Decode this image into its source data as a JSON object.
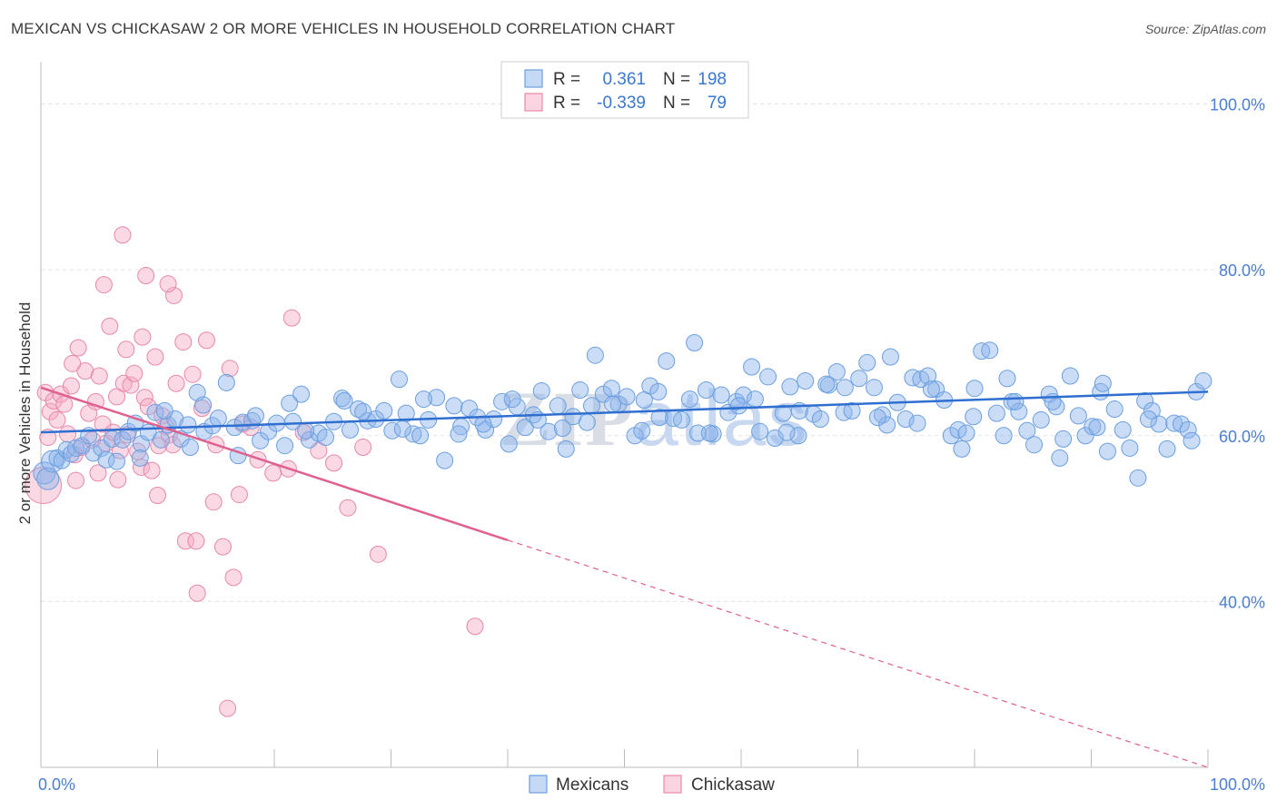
{
  "title": "MEXICAN VS CHICKASAW 2 OR MORE VEHICLES IN HOUSEHOLD CORRELATION CHART",
  "source": "Source: ZipAtlas.com",
  "watermark": "ZIPatlas",
  "colors": {
    "blue": "#6b9fe0",
    "blue_fill": "rgba(140,180,235,0.45)",
    "blue_line": "#2f6fd0",
    "pink": "#e888a8",
    "pink_fill": "rgba(245,170,195,0.45)",
    "pink_line": "#e06090",
    "grid": "#e2e2e2",
    "axis_text": "#4a7fd0"
  },
  "legend": {
    "rows": [
      {
        "r_label": "R =",
        "r_value": "0.361",
        "n_label": "N =",
        "n_value": "198",
        "series": "Mexicans"
      },
      {
        "r_label": "R =",
        "r_value": "-0.339",
        "n_label": "N =",
        "n_value": "79",
        "series": "Chickasaw"
      }
    ]
  },
  "bottom_legend": [
    "Mexicans",
    "Chickasaw"
  ],
  "chart_data": {
    "type": "scatter",
    "title": "MEXICAN VS CHICKASAW 2 OR MORE VEHICLES IN HOUSEHOLD CORRELATION CHART",
    "xlabel": "",
    "ylabel": "2 or more Vehicles in Household",
    "xlim": [
      0,
      100
    ],
    "ylim": [
      20,
      104
    ],
    "x_tick_labels": [
      "0.0%",
      "100.0%"
    ],
    "y_ticks": [
      40,
      60,
      80,
      100
    ],
    "y_tick_labels": [
      "40.0%",
      "60.0%",
      "80.0%",
      "100.0%"
    ],
    "grid": true,
    "legend_position": "top-center",
    "series": [
      {
        "name": "Mexicans",
        "r": 0.361,
        "n": 198,
        "trend": {
          "x": [
            0,
            100
          ],
          "y": [
            60.4,
            65.3
          ]
        },
        "points": [
          [
            0.3,
            55.5
          ],
          [
            0.6,
            54.8
          ],
          [
            1,
            56.9
          ],
          [
            1.4,
            57.3
          ],
          [
            1.8,
            57.0
          ],
          [
            2.2,
            58.3
          ],
          [
            2.6,
            57.8
          ],
          [
            3,
            58.5
          ],
          [
            3.5,
            58.8
          ],
          [
            4.1,
            60.0
          ],
          [
            4.5,
            57.9
          ],
          [
            5.2,
            58.5
          ],
          [
            5.6,
            57.1
          ],
          [
            6.1,
            59.6
          ],
          [
            6.5,
            56.9
          ],
          [
            7.0,
            59.5
          ],
          [
            7.5,
            60.5
          ],
          [
            8.1,
            61.5
          ],
          [
            8.6,
            59.0
          ],
          [
            9.2,
            60.4
          ],
          [
            9.8,
            62.8
          ],
          [
            10.3,
            59.5
          ],
          [
            10.9,
            61.3
          ],
          [
            11.5,
            62.0
          ],
          [
            12.0,
            59.6
          ],
          [
            12.6,
            61.3
          ],
          [
            13.4,
            65.2
          ],
          [
            14.0,
            60.5
          ],
          [
            14.7,
            61.2
          ],
          [
            15.2,
            62.1
          ],
          [
            15.9,
            66.4
          ],
          [
            16.6,
            61.0
          ],
          [
            17.3,
            61.6
          ],
          [
            18.1,
            61.8
          ],
          [
            18.8,
            59.4
          ],
          [
            19.5,
            60.5
          ],
          [
            20.2,
            61.5
          ],
          [
            20.9,
            58.8
          ],
          [
            21.6,
            61.7
          ],
          [
            22.3,
            65.0
          ],
          [
            23.0,
            59.5
          ],
          [
            23.8,
            60.3
          ],
          [
            24.4,
            59.8
          ],
          [
            25.1,
            61.7
          ],
          [
            25.8,
            64.5
          ],
          [
            26.5,
            60.7
          ],
          [
            27.2,
            63.2
          ],
          [
            28.0,
            61.8
          ],
          [
            28.7,
            62.0
          ],
          [
            29.4,
            63.0
          ],
          [
            30.1,
            60.6
          ],
          [
            30.7,
            66.8
          ],
          [
            31.3,
            62.7
          ],
          [
            31.9,
            60.2
          ],
          [
            32.5,
            60.0
          ],
          [
            33.2,
            61.9
          ],
          [
            33.9,
            64.6
          ],
          [
            34.6,
            57.0
          ],
          [
            35.4,
            63.6
          ],
          [
            36.0,
            61.1
          ],
          [
            36.7,
            63.3
          ],
          [
            37.4,
            62.2
          ],
          [
            38.1,
            60.7
          ],
          [
            38.8,
            62.0
          ],
          [
            39.5,
            64.1
          ],
          [
            40.1,
            59.0
          ],
          [
            40.8,
            63.5
          ],
          [
            41.5,
            61.0
          ],
          [
            42.2,
            62.5
          ],
          [
            42.9,
            65.4
          ],
          [
            43.5,
            60.5
          ],
          [
            44.3,
            63.6
          ],
          [
            45.0,
            58.4
          ],
          [
            45.6,
            62.3
          ],
          [
            46.2,
            65.5
          ],
          [
            46.8,
            61.6
          ],
          [
            47.5,
            69.7
          ],
          [
            48.2,
            65.0
          ],
          [
            48.9,
            65.7
          ],
          [
            49.5,
            63.8
          ],
          [
            50.2,
            64.7
          ],
          [
            50.9,
            60.0
          ],
          [
            51.5,
            60.6
          ],
          [
            52.2,
            66.0
          ],
          [
            52.9,
            65.3
          ],
          [
            53.6,
            69.0
          ],
          [
            54.2,
            62.1
          ],
          [
            54.9,
            61.9
          ],
          [
            55.6,
            64.4
          ],
          [
            56.3,
            60.3
          ],
          [
            57.0,
            65.5
          ],
          [
            57.6,
            60.2
          ],
          [
            58.3,
            64.9
          ],
          [
            58.9,
            62.8
          ],
          [
            59.6,
            64.1
          ],
          [
            60.2,
            64.9
          ],
          [
            60.9,
            68.3
          ],
          [
            61.6,
            60.5
          ],
          [
            62.3,
            67.1
          ],
          [
            62.9,
            59.7
          ],
          [
            63.6,
            62.7
          ],
          [
            64.2,
            65.9
          ],
          [
            64.9,
            60.0
          ],
          [
            65.5,
            66.6
          ],
          [
            66.2,
            62.6
          ],
          [
            66.8,
            62.0
          ],
          [
            67.5,
            66.1
          ],
          [
            68.2,
            67.7
          ],
          [
            68.8,
            62.8
          ],
          [
            69.5,
            63.0
          ],
          [
            70.1,
            66.9
          ],
          [
            70.8,
            68.8
          ],
          [
            71.4,
            65.8
          ],
          [
            72.1,
            62.5
          ],
          [
            72.8,
            69.5
          ],
          [
            73.4,
            64.0
          ],
          [
            74.1,
            62.0
          ],
          [
            74.7,
            67.0
          ],
          [
            75.4,
            66.8
          ],
          [
            76.0,
            67.2
          ],
          [
            76.7,
            65.6
          ],
          [
            77.4,
            64.3
          ],
          [
            78.0,
            60.0
          ],
          [
            78.6,
            60.7
          ],
          [
            79.3,
            60.3
          ],
          [
            79.9,
            62.3
          ],
          [
            80.6,
            70.2
          ],
          [
            81.3,
            70.3
          ],
          [
            81.9,
            62.7
          ],
          [
            82.5,
            60.0
          ],
          [
            83.2,
            64.1
          ],
          [
            83.8,
            62.9
          ],
          [
            84.5,
            60.6
          ],
          [
            85.1,
            58.9
          ],
          [
            85.7,
            61.9
          ],
          [
            86.4,
            65.0
          ],
          [
            87.0,
            63.5
          ],
          [
            87.6,
            59.6
          ],
          [
            88.2,
            67.2
          ],
          [
            88.9,
            62.4
          ],
          [
            89.5,
            60.0
          ],
          [
            90.1,
            61.1
          ],
          [
            90.8,
            65.3
          ],
          [
            91.4,
            58.1
          ],
          [
            92.0,
            63.2
          ],
          [
            92.7,
            60.7
          ],
          [
            93.3,
            58.5
          ],
          [
            94.0,
            54.9
          ],
          [
            94.6,
            64.2
          ],
          [
            95.2,
            63.0
          ],
          [
            95.8,
            61.4
          ],
          [
            96.5,
            58.4
          ],
          [
            97.1,
            61.5
          ],
          [
            97.7,
            61.4
          ],
          [
            98.3,
            60.7
          ],
          [
            99.0,
            65.3
          ],
          [
            99.6,
            66.6
          ],
          [
            8.5,
            57.3
          ],
          [
            12.8,
            58.6
          ],
          [
            16.9,
            57.6
          ],
          [
            21.3,
            63.9
          ],
          [
            26.0,
            64.2
          ],
          [
            31.0,
            60.8
          ],
          [
            35.8,
            60.2
          ],
          [
            40.4,
            64.4
          ],
          [
            44.7,
            60.9
          ],
          [
            49.0,
            63.8
          ],
          [
            53.0,
            62.2
          ],
          [
            57.3,
            60.3
          ],
          [
            61.2,
            64.4
          ],
          [
            65.0,
            63.0
          ],
          [
            68.9,
            65.8
          ],
          [
            72.5,
            61.3
          ],
          [
            76.3,
            65.6
          ],
          [
            80.0,
            65.7
          ],
          [
            83.5,
            64.1
          ],
          [
            87.3,
            57.3
          ],
          [
            91.0,
            66.3
          ],
          [
            94.9,
            62.0
          ],
          [
            98.6,
            59.4
          ],
          [
            10.6,
            63.0
          ],
          [
            13.9,
            63.7
          ],
          [
            18.4,
            62.4
          ],
          [
            22.7,
            60.6
          ],
          [
            27.6,
            62.9
          ],
          [
            32.8,
            64.4
          ],
          [
            37.9,
            61.4
          ],
          [
            42.6,
            61.9
          ],
          [
            47.2,
            63.6
          ],
          [
            51.7,
            64.3
          ],
          [
            56.0,
            71.2
          ],
          [
            59.8,
            63.6
          ],
          [
            63.9,
            60.4
          ],
          [
            67.3,
            66.2
          ],
          [
            71.7,
            62.2
          ],
          [
            75.1,
            61.5
          ],
          [
            78.9,
            58.4
          ],
          [
            82.8,
            66.9
          ],
          [
            86.7,
            64.1
          ],
          [
            90.5,
            61.0
          ]
        ]
      },
      {
        "name": "Chickasaw",
        "r": -0.339,
        "n": 79,
        "trend": {
          "x": [
            0,
            40
          ],
          "y": [
            65.8,
            47.4
          ],
          "dashed_to": {
            "x": 100,
            "y": 20.0
          }
        },
        "points": [
          [
            0.2,
            54.0
          ],
          [
            0.4,
            65.2
          ],
          [
            0.6,
            59.8
          ],
          [
            0.8,
            62.9
          ],
          [
            1.1,
            64.2
          ],
          [
            1.4,
            61.9
          ],
          [
            1.7,
            65.0
          ],
          [
            2.0,
            63.8
          ],
          [
            2.3,
            60.2
          ],
          [
            2.6,
            66.0
          ],
          [
            2.9,
            57.7
          ],
          [
            3.2,
            70.6
          ],
          [
            3.5,
            58.6
          ],
          [
            3.8,
            67.8
          ],
          [
            4.1,
            62.7
          ],
          [
            4.4,
            59.5
          ],
          [
            4.7,
            64.1
          ],
          [
            5.0,
            67.2
          ],
          [
            5.3,
            61.4
          ],
          [
            5.6,
            59.1
          ],
          [
            5.9,
            73.2
          ],
          [
            6.2,
            60.4
          ],
          [
            6.5,
            64.7
          ],
          [
            6.8,
            58.2
          ],
          [
            7.1,
            66.3
          ],
          [
            7.4,
            60.1
          ],
          [
            7.7,
            66.1
          ],
          [
            8.0,
            67.5
          ],
          [
            8.3,
            58.1
          ],
          [
            8.6,
            56.2
          ],
          [
            8.9,
            64.6
          ],
          [
            9.2,
            63.5
          ],
          [
            9.5,
            55.8
          ],
          [
            9.8,
            69.5
          ],
          [
            10.1,
            58.8
          ],
          [
            10.4,
            62.4
          ],
          [
            10.7,
            61.1
          ],
          [
            11.0,
            60.1
          ],
          [
            11.3,
            58.9
          ],
          [
            11.6,
            66.3
          ],
          [
            2.7,
            68.7
          ],
          [
            4.9,
            55.5
          ],
          [
            7.3,
            70.4
          ],
          [
            9.0,
            79.3
          ],
          [
            11.4,
            76.9
          ],
          [
            12.2,
            71.3
          ],
          [
            13.0,
            67.4
          ],
          [
            13.8,
            63.3
          ],
          [
            15.0,
            58.9
          ],
          [
            16.2,
            68.1
          ],
          [
            17.3,
            61.4
          ],
          [
            18.6,
            57.1
          ],
          [
            19.9,
            55.5
          ],
          [
            21.2,
            56.0
          ],
          [
            22.5,
            60.4
          ],
          [
            23.8,
            58.2
          ],
          [
            25.1,
            56.7
          ],
          [
            26.3,
            51.3
          ],
          [
            27.6,
            58.6
          ],
          [
            28.9,
            45.7
          ],
          [
            7.0,
            84.2
          ],
          [
            10.9,
            78.3
          ],
          [
            14.2,
            71.5
          ],
          [
            18.0,
            61.0
          ],
          [
            21.5,
            74.2
          ],
          [
            5.4,
            78.2
          ],
          [
            8.7,
            71.9
          ],
          [
            12.4,
            47.3
          ],
          [
            13.3,
            47.3
          ],
          [
            15.6,
            46.6
          ],
          [
            16.5,
            42.9
          ],
          [
            13.4,
            41.0
          ],
          [
            16.0,
            27.1
          ],
          [
            37.2,
            37.0
          ],
          [
            3.0,
            54.6
          ],
          [
            6.6,
            54.7
          ],
          [
            10.0,
            52.8
          ],
          [
            14.8,
            52.0
          ],
          [
            17.0,
            52.9
          ]
        ]
      }
    ]
  }
}
